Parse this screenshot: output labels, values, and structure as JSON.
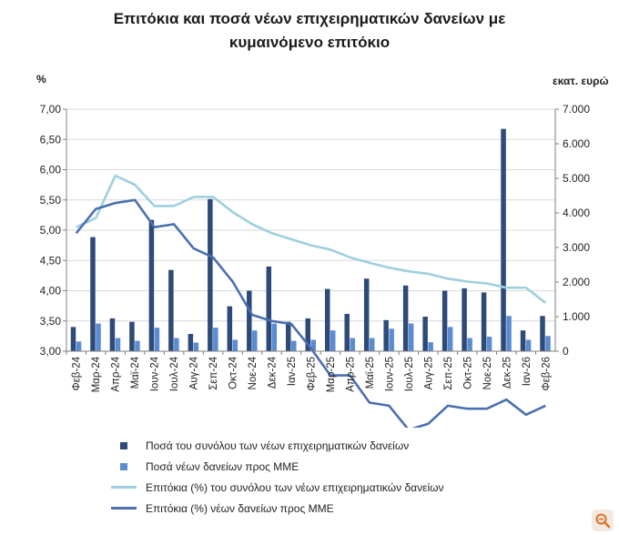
{
  "chart_data": {
    "type": "bar+line",
    "title_line1": "Επιτόκια και ποσά νέων επιχειρηματικών δανείων με",
    "title_line2": "κυμαινόμενο επιτόκιο",
    "left_axis_unit": "%",
    "right_axis_unit": "εκατ. ευρώ",
    "left_ylim": [
      3.0,
      7.0
    ],
    "right_ylim": [
      0,
      7000
    ],
    "left_ticks": [
      "3,00",
      "3,50",
      "4,00",
      "4,50",
      "5,00",
      "5,50",
      "6,00",
      "6,50",
      "7,00"
    ],
    "right_ticks": [
      "0",
      "1.000",
      "2.000",
      "3.000",
      "4.000",
      "5.000",
      "6.000",
      "7.000"
    ],
    "categories": [
      "Φεβ-24",
      "Μαρ-24",
      "Απρ-24",
      "Μαϊ-24",
      "Ιουν-24",
      "Ιουλ-24",
      "Αυγ-24",
      "Σεπ-24",
      "Οκτ-24",
      "Νοε-24",
      "Δεκ-24",
      "Ιαν-25",
      "Φεβ-25",
      "Μαρ-25",
      "Απρ-25",
      "Μαϊ-25",
      "Ιουν-25",
      "Ιουλ-25",
      "Αυγ-25",
      "Σεπ-25",
      "Οκτ-25",
      "Νοε-25",
      "Δεκ-25",
      "Ιαν-26",
      "Φεβ-26"
    ],
    "series": [
      {
        "name": "Ποσά του συνόλου των νέων επιχειρηματικών δανείων",
        "kind": "bar",
        "axis": "right",
        "color": "#2e4a78",
        "values": [
          700,
          3300,
          950,
          850,
          3800,
          2350,
          500,
          4400,
          1300,
          1750,
          2450,
          850,
          950,
          1800,
          1080,
          2100,
          900,
          1900,
          1000,
          1750,
          1820,
          1700,
          6430,
          600,
          1020
        ]
      },
      {
        "name": "Ποσά νέων δανείων προς ΜΜΕ",
        "kind": "bar",
        "axis": "right",
        "color": "#5b8bd0",
        "values": [
          280,
          800,
          380,
          300,
          680,
          380,
          250,
          680,
          330,
          600,
          800,
          300,
          330,
          600,
          380,
          380,
          650,
          800,
          260,
          700,
          380,
          420,
          1020,
          330,
          440
        ]
      },
      {
        "name": "Επιτόκια (%) του συνόλου των νέων επιχειρηματικών δανείων",
        "kind": "line",
        "axis": "left",
        "color": "#9ed0de",
        "values": [
          5.05,
          5.2,
          5.9,
          5.75,
          5.4,
          5.4,
          5.55,
          5.55,
          5.3,
          5.1,
          4.95,
          4.85,
          4.75,
          4.68,
          4.55,
          4.46,
          4.38,
          4.32,
          4.28,
          4.2,
          4.15,
          4.12,
          4.05,
          4.05,
          3.8
        ]
      },
      {
        "name": "Επιτόκια (%) νέων δανείων προς ΜΜΕ",
        "kind": "line",
        "axis": "left",
        "color": "#4a70b0",
        "values": [
          4.95,
          5.35,
          5.45,
          5.5,
          5.05,
          5.1,
          4.7,
          4.55,
          4.15,
          3.6,
          3.5,
          3.45,
          3.05,
          2.6,
          2.6,
          2.15,
          2.1,
          1.7,
          1.8,
          2.1,
          2.05,
          2.05,
          2.2,
          1.95,
          2.1
        ]
      }
    ],
    "legend_placement": "bottom"
  }
}
